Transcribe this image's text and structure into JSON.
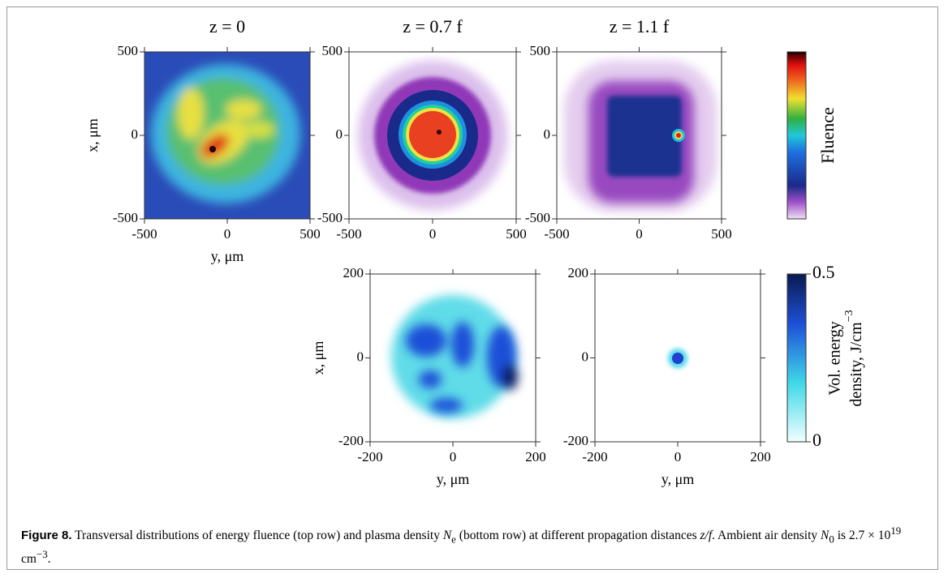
{
  "chart_data": [
    {
      "type": "heatmap",
      "title": "z = 0",
      "xlabel": "y, μm",
      "ylabel": "x, μm",
      "xlim": [
        -500,
        500
      ],
      "ylim": [
        -500,
        500
      ],
      "xticks": [
        -500,
        0,
        500
      ],
      "yticks": [
        -500,
        0,
        500
      ]
    },
    {
      "type": "heatmap",
      "title": "z = 0.7 f",
      "xlim": [
        -500,
        500
      ],
      "ylim": [
        -500,
        500
      ],
      "xticks": [
        -500,
        0,
        500
      ],
      "yticks": [
        -500,
        0,
        500
      ]
    },
    {
      "type": "heatmap",
      "title": "z = 1.1 f",
      "xlim": [
        -500,
        500
      ],
      "ylim": [
        -500,
        500
      ],
      "xticks": [
        -500,
        0,
        500
      ],
      "yticks": [
        -500,
        0,
        500
      ]
    },
    {
      "type": "heatmap",
      "xlabel": "y, μm",
      "ylabel": "x, μm",
      "xlim": [
        -200,
        200
      ],
      "ylim": [
        -200,
        200
      ],
      "xticks": [
        -200,
        0,
        200
      ],
      "yticks": [
        -200,
        0,
        200
      ]
    },
    {
      "type": "heatmap",
      "xlabel": "y, μm",
      "xlim": [
        -200,
        200
      ],
      "ylim": [
        -200,
        200
      ],
      "xticks": [
        -200,
        0,
        200
      ],
      "yticks": [
        -200,
        0,
        200
      ]
    },
    {
      "type": "colorbar",
      "label": "Fluence"
    },
    {
      "type": "colorbar",
      "label": [
        "Vol. energy",
        "density, J/cm",
        "−3"
      ],
      "ylim": [
        0,
        0.5
      ],
      "yticks": [
        0,
        0.5
      ]
    }
  ],
  "caption": {
    "parts": [
      "Figure 8.",
      " Transversal distributions of energy fluence (top row) and plasma density ",
      "N",
      "e",
      " (bottom row) at different propagation distances ",
      "z/f",
      ". Ambient air density ",
      "N",
      "0",
      " is 2.7 × 10",
      "19",
      " cm",
      "−3",
      "."
    ]
  }
}
